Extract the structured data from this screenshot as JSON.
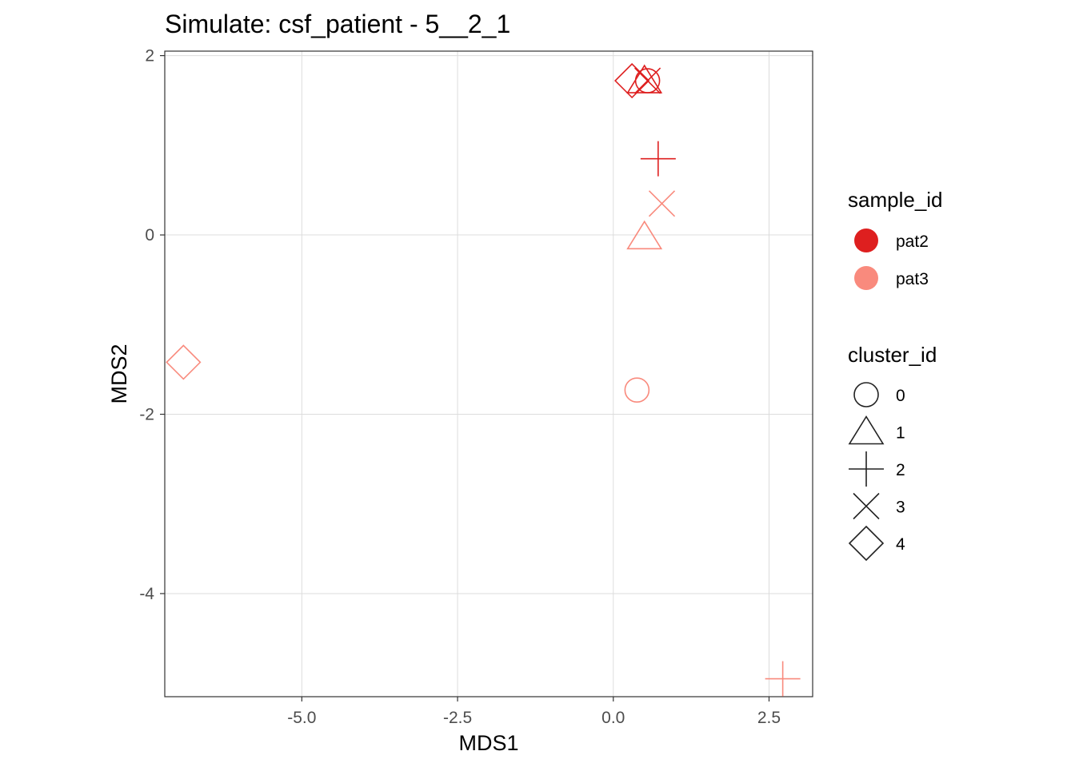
{
  "chart_data": {
    "type": "scatter",
    "title": "Simulate: csf_patient - 5__2_1",
    "xlabel": "MDS1",
    "ylabel": "MDS2",
    "xlim": [
      -7.2,
      3.2
    ],
    "ylim": [
      -5.15,
      2.05
    ],
    "x_ticks": [
      -5.0,
      -2.5,
      0.0,
      2.5
    ],
    "x_tick_labels": [
      "-5.0",
      "-2.5",
      "0.0",
      "2.5"
    ],
    "y_ticks": [
      2,
      0,
      -2,
      -4
    ],
    "y_tick_labels": [
      "2",
      "0",
      "-2",
      "-4"
    ],
    "grid": true,
    "legend_position": "right",
    "color_legend": {
      "title": "sample_id",
      "entries": [
        {
          "label": "pat2",
          "color": "#de1f1f"
        },
        {
          "label": "pat3",
          "color": "#f98a7d"
        }
      ]
    },
    "shape_legend": {
      "title": "cluster_id",
      "entries": [
        {
          "label": "0",
          "shape": "circle"
        },
        {
          "label": "1",
          "shape": "triangle"
        },
        {
          "label": "2",
          "shape": "plus"
        },
        {
          "label": "3",
          "shape": "cross"
        },
        {
          "label": "4",
          "shape": "diamond"
        }
      ]
    },
    "points": [
      {
        "x": 0.55,
        "y": 1.72,
        "sample_id": "pat2",
        "cluster_id": "0"
      },
      {
        "x": 0.5,
        "y": 1.72,
        "sample_id": "pat2",
        "cluster_id": "1"
      },
      {
        "x": 0.72,
        "y": 0.85,
        "sample_id": "pat2",
        "cluster_id": "2"
      },
      {
        "x": 0.55,
        "y": 1.72,
        "sample_id": "pat2",
        "cluster_id": "3"
      },
      {
        "x": 0.3,
        "y": 1.72,
        "sample_id": "pat2",
        "cluster_id": "4"
      },
      {
        "x": 0.38,
        "y": -1.73,
        "sample_id": "pat3",
        "cluster_id": "0"
      },
      {
        "x": 0.5,
        "y": -0.02,
        "sample_id": "pat3",
        "cluster_id": "1"
      },
      {
        "x": 2.72,
        "y": -4.95,
        "sample_id": "pat3",
        "cluster_id": "2"
      },
      {
        "x": 0.78,
        "y": 0.35,
        "sample_id": "pat3",
        "cluster_id": "3"
      },
      {
        "x": -6.9,
        "y": -1.42,
        "sample_id": "pat3",
        "cluster_id": "4"
      }
    ]
  }
}
